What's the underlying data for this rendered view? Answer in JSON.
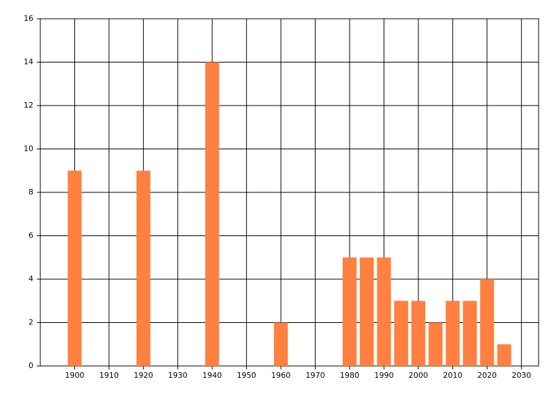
{
  "chart_data": {
    "type": "bar",
    "x": [
      1900,
      1920,
      1940,
      1960,
      1980,
      1985,
      1990,
      1995,
      2000,
      2005,
      2010,
      2015,
      2020,
      2025
    ],
    "values": [
      9,
      9,
      14,
      2,
      5,
      5,
      5,
      3,
      3,
      2,
      3,
      3,
      4,
      1
    ],
    "color": "#ff8040",
    "xlim": [
      1890,
      2035
    ],
    "xticks": [
      1900,
      1910,
      1920,
      1930,
      1940,
      1950,
      1960,
      1970,
      1980,
      1990,
      2000,
      2010,
      2020,
      2030
    ],
    "ylim": [
      0,
      16
    ],
    "yticks": [
      0,
      2,
      4,
      6,
      8,
      10,
      12,
      14,
      16
    ],
    "grid": true
  }
}
